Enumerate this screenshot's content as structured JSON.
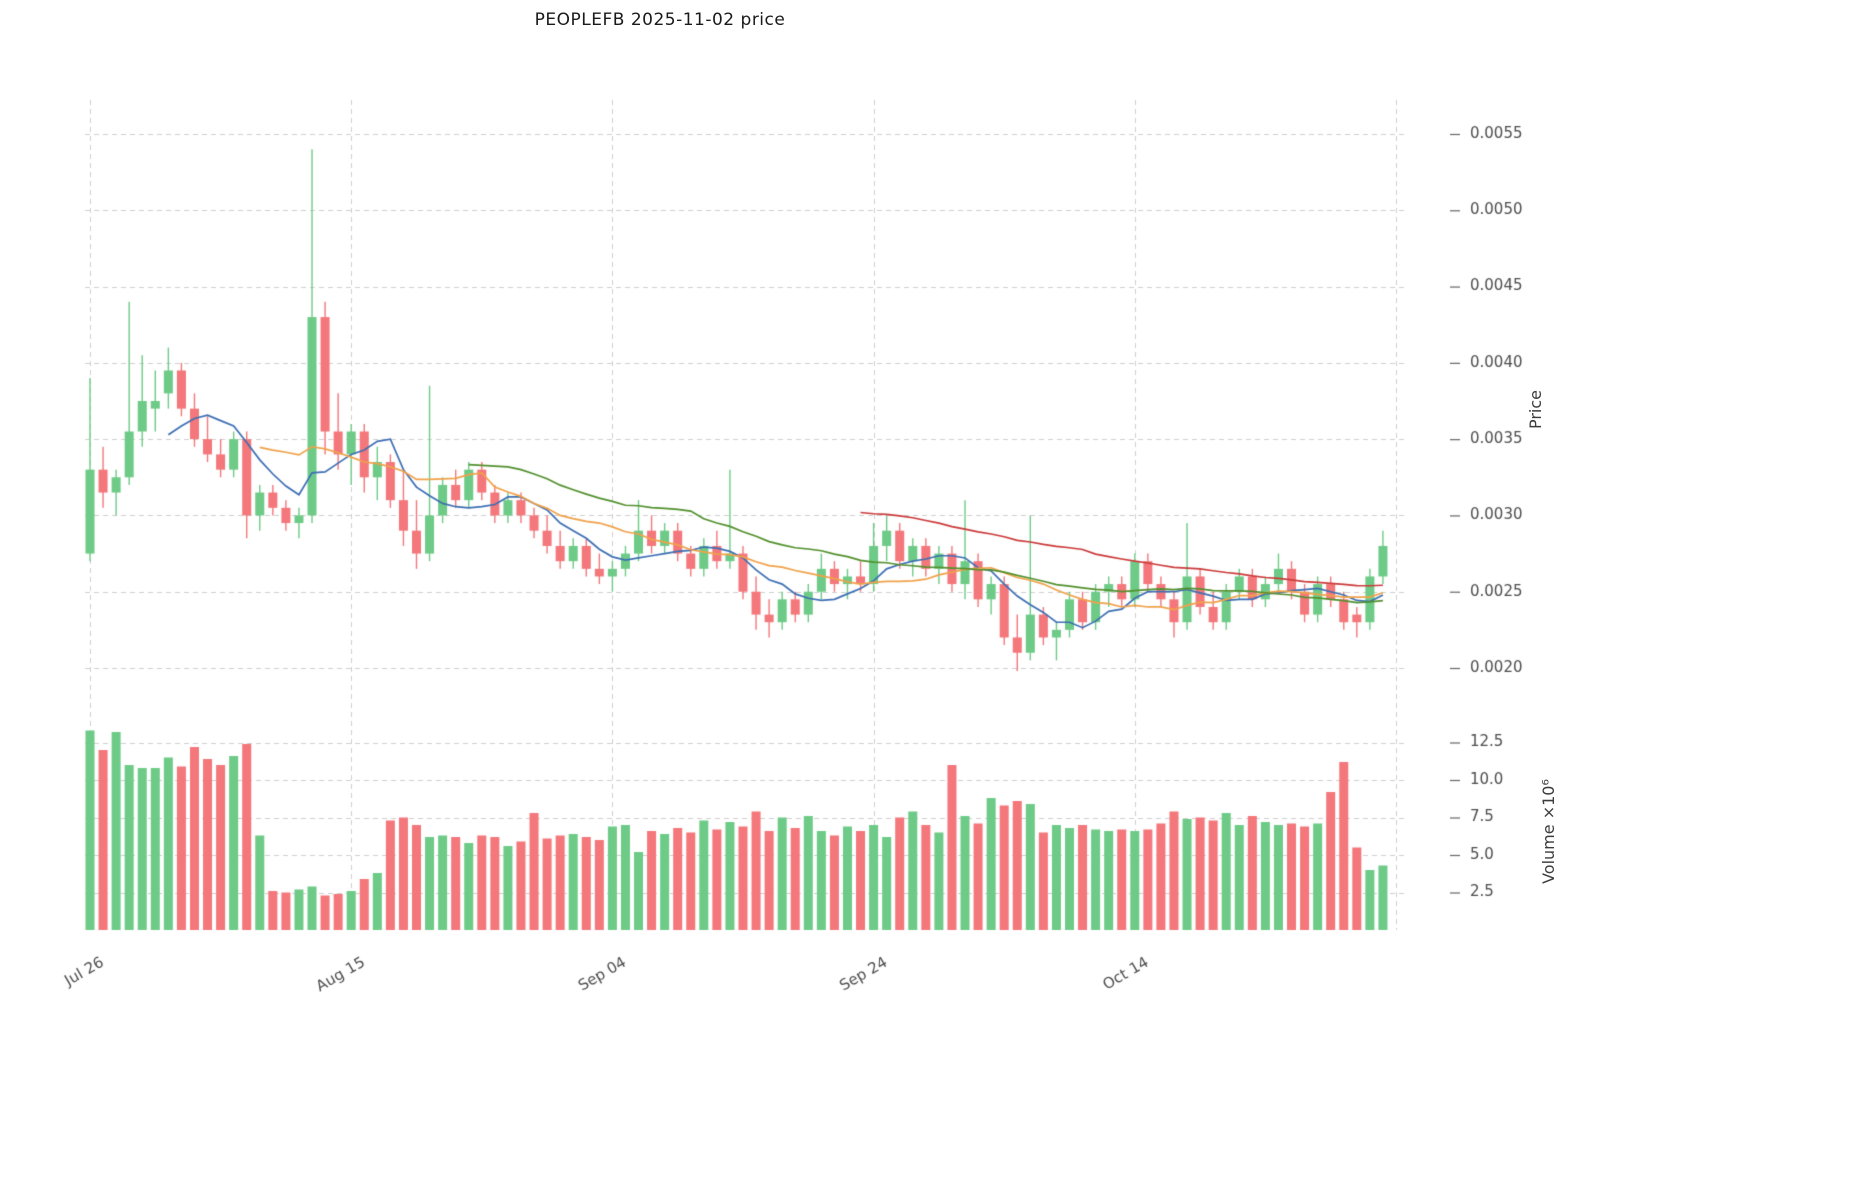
{
  "title": "PEOPLEFB  2025-11-02  price",
  "axes": {
    "price_label": "Price",
    "volume_label": "Volume ×10⁶"
  },
  "chart_data": {
    "type": "candlestick",
    "subpanels": [
      "price",
      "volume"
    ],
    "x_ticks": [
      {
        "i": 0,
        "label": "Jul 26"
      },
      {
        "i": 20,
        "label": "Aug 15"
      },
      {
        "i": 40,
        "label": "Sep 04"
      },
      {
        "i": 60,
        "label": "Sep 24"
      },
      {
        "i": 80,
        "label": "Oct 14"
      }
    ],
    "extra_gridline_index": 100,
    "price_ticks": [
      0.0055,
      0.005,
      0.0045,
      0.004,
      0.0035,
      0.003,
      0.0025,
      0.002
    ],
    "volume_ticks": [
      12.5,
      10.0,
      7.5,
      5.0,
      2.5
    ],
    "ylim_price": [
      0.002,
      0.0055
    ],
    "ylim_volume": [
      0,
      13.8
    ],
    "grid": true,
    "legend": "none",
    "ma": [
      {
        "window": 7,
        "color": "#3d6fb4"
      },
      {
        "window": 14,
        "color": "#f0a24a"
      },
      {
        "window": 30,
        "color": "#52912e"
      },
      {
        "window": 60,
        "color": "#cc3b3b"
      }
    ],
    "colors": {
      "up": "#6ecb87",
      "down": "#f4777b",
      "grid": "#cfcfcf",
      "text": "#4d4d4d"
    },
    "ohlc": {
      "open": [
        0.00275,
        0.0033,
        0.00315,
        0.00325,
        0.00355,
        0.0037,
        0.0038,
        0.00395,
        0.0037,
        0.0035,
        0.0034,
        0.0033,
        0.0035,
        0.003,
        0.00315,
        0.00305,
        0.00295,
        0.003,
        0.0043,
        0.00355,
        0.0034,
        0.00355,
        0.00325,
        0.00335,
        0.0031,
        0.0029,
        0.00275,
        0.003,
        0.0032,
        0.0031,
        0.0033,
        0.00315,
        0.003,
        0.0031,
        0.003,
        0.0029,
        0.0028,
        0.0027,
        0.0028,
        0.00265,
        0.0026,
        0.00265,
        0.00275,
        0.0029,
        0.0028,
        0.0029,
        0.00275,
        0.00265,
        0.0028,
        0.0027,
        0.00275,
        0.0025,
        0.00235,
        0.0023,
        0.00245,
        0.00235,
        0.0025,
        0.00265,
        0.00255,
        0.0026,
        0.00255,
        0.0028,
        0.0029,
        0.0027,
        0.0028,
        0.00265,
        0.00275,
        0.00255,
        0.0027,
        0.00245,
        0.00255,
        0.0022,
        0.0021,
        0.00235,
        0.0022,
        0.00225,
        0.00245,
        0.0023,
        0.0025,
        0.00255,
        0.00245,
        0.0027,
        0.00255,
        0.00245,
        0.0023,
        0.0026,
        0.0024,
        0.0023,
        0.0025,
        0.0026,
        0.00245,
        0.00255,
        0.00265,
        0.0025,
        0.00235,
        0.00255,
        0.00245,
        0.00235,
        0.0023,
        0.0026
      ],
      "high": [
        0.0039,
        0.00345,
        0.0033,
        0.0044,
        0.00405,
        0.00395,
        0.0041,
        0.004,
        0.0038,
        0.00365,
        0.0035,
        0.00355,
        0.00355,
        0.0032,
        0.0032,
        0.0031,
        0.00305,
        0.0054,
        0.0044,
        0.0038,
        0.0036,
        0.0036,
        0.00345,
        0.0034,
        0.0033,
        0.0031,
        0.00385,
        0.00325,
        0.0033,
        0.00335,
        0.00335,
        0.0032,
        0.00315,
        0.00315,
        0.00305,
        0.003,
        0.0029,
        0.00285,
        0.00285,
        0.00275,
        0.0027,
        0.0028,
        0.0031,
        0.003,
        0.00295,
        0.00295,
        0.0028,
        0.00285,
        0.0029,
        0.0033,
        0.0028,
        0.0026,
        0.00245,
        0.0025,
        0.0025,
        0.00255,
        0.00275,
        0.0027,
        0.00265,
        0.0027,
        0.00295,
        0.003,
        0.00295,
        0.00285,
        0.00285,
        0.0028,
        0.0028,
        0.0031,
        0.00275,
        0.0026,
        0.0026,
        0.00235,
        0.003,
        0.0024,
        0.0023,
        0.0025,
        0.0025,
        0.00255,
        0.0026,
        0.0026,
        0.00275,
        0.00275,
        0.0026,
        0.0025,
        0.00295,
        0.00265,
        0.0025,
        0.00255,
        0.00265,
        0.00265,
        0.0026,
        0.00275,
        0.0027,
        0.00255,
        0.0026,
        0.0026,
        0.0025,
        0.0024,
        0.00265,
        0.0029
      ],
      "low": [
        0.0027,
        0.00305,
        0.003,
        0.0032,
        0.00345,
        0.00355,
        0.0037,
        0.00365,
        0.00345,
        0.00335,
        0.00325,
        0.00325,
        0.00285,
        0.0029,
        0.003,
        0.0029,
        0.00285,
        0.00295,
        0.0034,
        0.0033,
        0.0032,
        0.00315,
        0.0031,
        0.00305,
        0.0028,
        0.00265,
        0.0027,
        0.00295,
        0.00305,
        0.00305,
        0.0031,
        0.00295,
        0.00295,
        0.00295,
        0.00285,
        0.00275,
        0.00265,
        0.00265,
        0.0026,
        0.00255,
        0.0025,
        0.0026,
        0.0027,
        0.00275,
        0.00275,
        0.0027,
        0.0026,
        0.0026,
        0.00265,
        0.00265,
        0.00245,
        0.00225,
        0.0022,
        0.00225,
        0.0023,
        0.0023,
        0.00245,
        0.0025,
        0.00245,
        0.0025,
        0.0025,
        0.0027,
        0.00265,
        0.0026,
        0.0026,
        0.00255,
        0.0025,
        0.00245,
        0.0024,
        0.00235,
        0.00215,
        0.00198,
        0.00205,
        0.00215,
        0.00205,
        0.0022,
        0.00225,
        0.00225,
        0.0024,
        0.0024,
        0.0024,
        0.0025,
        0.0024,
        0.0022,
        0.00225,
        0.00235,
        0.00225,
        0.00225,
        0.00245,
        0.0024,
        0.0024,
        0.0025,
        0.00245,
        0.0023,
        0.0023,
        0.0024,
        0.00225,
        0.0022,
        0.00225,
        0.00255
      ],
      "close": [
        0.0033,
        0.00315,
        0.00325,
        0.00355,
        0.00375,
        0.00375,
        0.00395,
        0.0037,
        0.0035,
        0.0034,
        0.0033,
        0.0035,
        0.003,
        0.00315,
        0.00305,
        0.00295,
        0.003,
        0.0043,
        0.00355,
        0.0034,
        0.00355,
        0.00325,
        0.00335,
        0.0031,
        0.0029,
        0.00275,
        0.003,
        0.0032,
        0.0031,
        0.0033,
        0.00315,
        0.003,
        0.0031,
        0.003,
        0.0029,
        0.0028,
        0.0027,
        0.0028,
        0.00265,
        0.0026,
        0.00265,
        0.00275,
        0.0029,
        0.0028,
        0.0029,
        0.00275,
        0.00265,
        0.0028,
        0.0027,
        0.00275,
        0.0025,
        0.00235,
        0.0023,
        0.00245,
        0.00235,
        0.0025,
        0.00265,
        0.00255,
        0.0026,
        0.00255,
        0.0028,
        0.0029,
        0.0027,
        0.0028,
        0.00265,
        0.00275,
        0.00255,
        0.0027,
        0.00245,
        0.00255,
        0.0022,
        0.0021,
        0.00235,
        0.0022,
        0.00225,
        0.00245,
        0.0023,
        0.0025,
        0.00255,
        0.00245,
        0.0027,
        0.00255,
        0.00245,
        0.0023,
        0.0026,
        0.0024,
        0.0023,
        0.0025,
        0.0026,
        0.00245,
        0.00255,
        0.00265,
        0.0025,
        0.00235,
        0.00255,
        0.00245,
        0.0023,
        0.0023,
        0.0026,
        0.0028
      ]
    },
    "volume": [
      13.3,
      12.0,
      13.2,
      11.0,
      10.8,
      10.8,
      11.5,
      10.9,
      12.2,
      11.4,
      11.0,
      11.6,
      12.4,
      6.3,
      2.6,
      2.5,
      2.7,
      2.9,
      2.3,
      2.4,
      2.6,
      3.4,
      3.8,
      7.3,
      7.5,
      7.0,
      6.2,
      6.3,
      6.2,
      5.8,
      6.3,
      6.2,
      5.6,
      5.9,
      7.8,
      6.1,
      6.3,
      6.4,
      6.2,
      6.0,
      6.9,
      7.0,
      5.2,
      6.6,
      6.4,
      6.8,
      6.5,
      7.3,
      6.7,
      7.2,
      6.9,
      7.9,
      6.6,
      7.5,
      6.8,
      7.6,
      6.6,
      6.3,
      6.9,
      6.6,
      7.0,
      6.2,
      7.5,
      7.9,
      7.0,
      6.5,
      11.0,
      7.6,
      7.1,
      8.8,
      8.3,
      8.6,
      8.4,
      6.5,
      7.0,
      6.8,
      7.0,
      6.7,
      6.6,
      6.7,
      6.6,
      6.7,
      7.1,
      7.9,
      7.4,
      7.5,
      7.3,
      7.8,
      7.0,
      7.6,
      7.2,
      7.0,
      7.1,
      6.9,
      7.1,
      9.2,
      11.2,
      5.5,
      4.0,
      4.3
    ]
  }
}
